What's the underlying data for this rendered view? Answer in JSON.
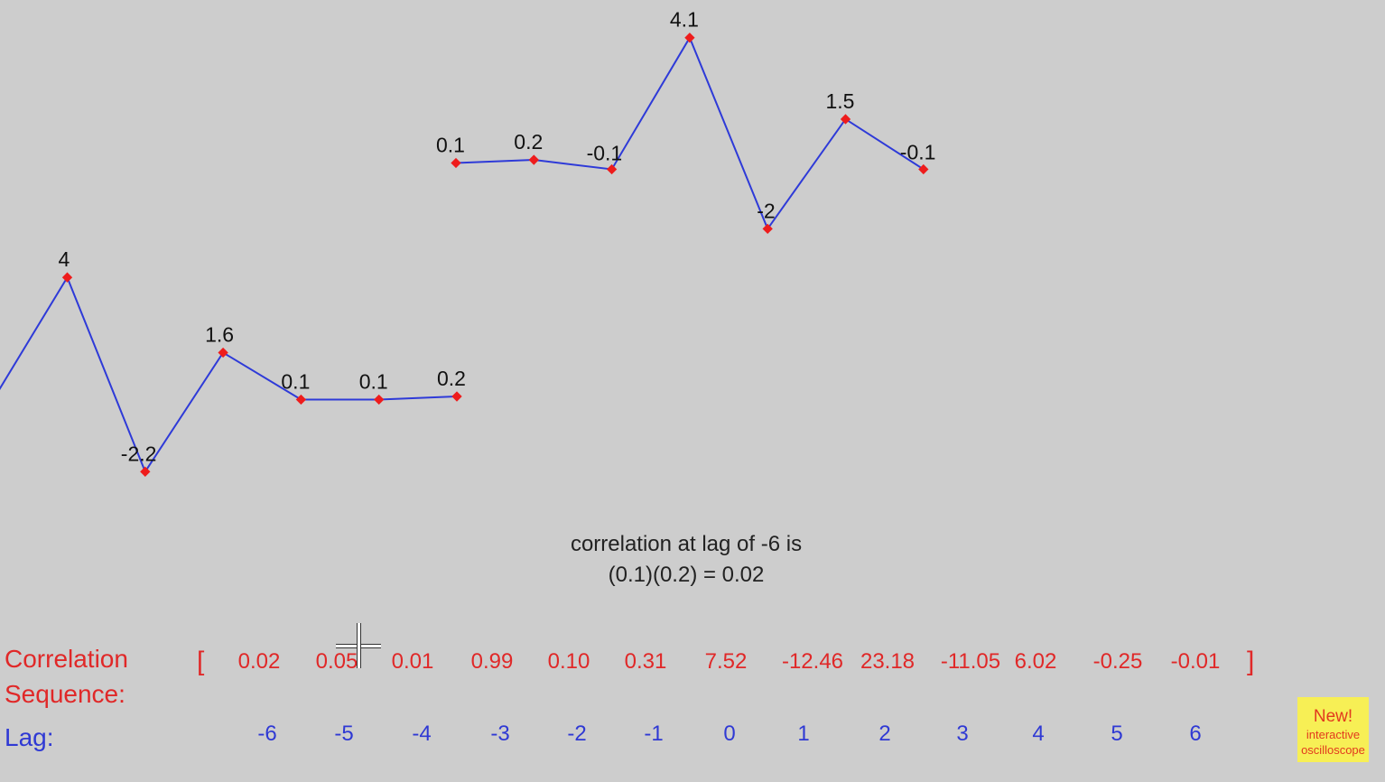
{
  "chart_data": {
    "type": "line",
    "series": [
      {
        "points": [
          {
            "x": 0.0,
            "y": 0.1,
            "label": "0.1"
          },
          {
            "x": 1.0,
            "y": 0.2,
            "label": "0.2"
          },
          {
            "x": 2.0,
            "y": -0.1,
            "label": "-0.1"
          },
          {
            "x": 3.0,
            "y": 4.1,
            "label": "4.1"
          },
          {
            "x": 4.0,
            "y": -2,
            "label": "-2"
          },
          {
            "x": 5.0,
            "y": 1.5,
            "label": "1.5"
          },
          {
            "x": 6.0,
            "y": -0.1,
            "label": "-0.1"
          }
        ]
      },
      {
        "points": [
          {
            "x": -6.0,
            "y": -0.1,
            "label": ""
          },
          {
            "x": -5.0,
            "y": 4,
            "label": "4"
          },
          {
            "x": -4.0,
            "y": -2.2,
            "label": "-2.2"
          },
          {
            "x": -3.0,
            "y": 1.6,
            "label": "1.6"
          },
          {
            "x": -2.0,
            "y": 0.1,
            "label": "0.1"
          },
          {
            "x": -1.0,
            "y": 0.1,
            "label": "0.1"
          },
          {
            "x": 0.0,
            "y": 0.2,
            "label": "0.2"
          }
        ]
      }
    ],
    "colors": {
      "line": "#2e3ad8",
      "marker": "#ee1c1c",
      "label": "#111111"
    }
  },
  "caption": {
    "line1": "correlation at lag of -6 is",
    "line2": "(0.1)(0.2) = 0.02"
  },
  "sequence": {
    "label_line1": "Correlation",
    "label_line2": "Sequence:",
    "open_bracket": "[",
    "close_bracket": "]",
    "values": [
      "0.02",
      "0.05",
      "0.01",
      "0.99",
      "0.10",
      "0.31",
      "7.52",
      "-12.46",
      "23.18",
      "-11.05",
      "6.02",
      "-0.25",
      "-0.01"
    ],
    "lag_label": "Lag:",
    "lags": [
      "-6",
      "-5",
      "-4",
      "-3",
      "-2",
      "-1",
      "0",
      "1",
      "2",
      "3",
      "4",
      "5",
      "6"
    ]
  },
  "badge": {
    "line1": "New!",
    "line2": "interactive",
    "line3": "oscilloscope"
  }
}
